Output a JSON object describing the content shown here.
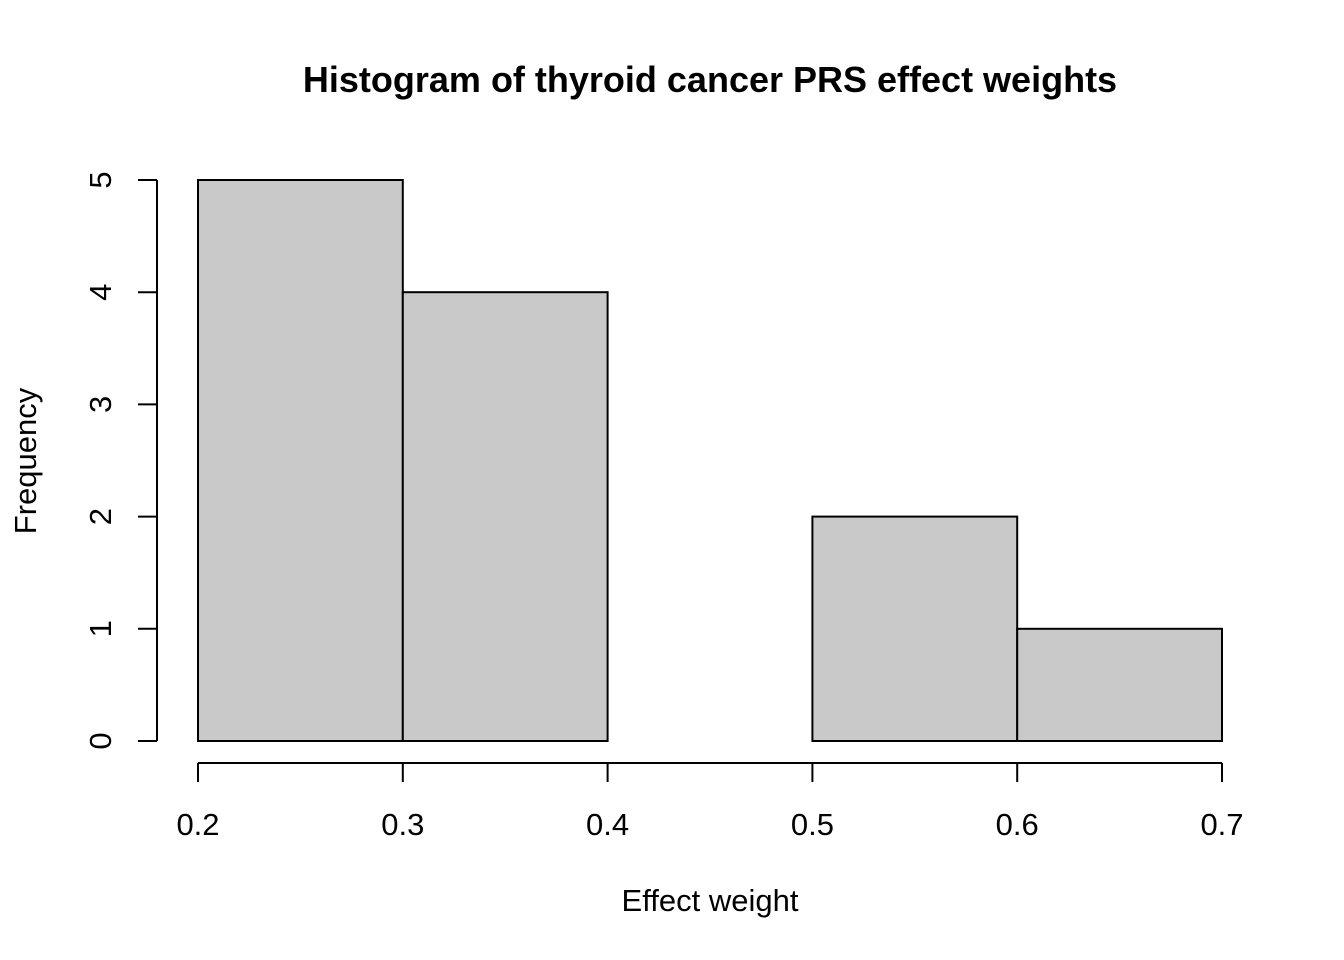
{
  "chart_data": {
    "type": "bar",
    "title": "Histogram of thyroid cancer PRS effect weights",
    "xlabel": "Effect weight",
    "ylabel": "Frequency",
    "bins": [
      {
        "start": 0.2,
        "end": 0.3,
        "count": 5
      },
      {
        "start": 0.3,
        "end": 0.4,
        "count": 4
      },
      {
        "start": 0.4,
        "end": 0.5,
        "count": 0
      },
      {
        "start": 0.5,
        "end": 0.6,
        "count": 2
      },
      {
        "start": 0.6,
        "end": 0.7,
        "count": 1
      }
    ],
    "xlim": [
      0.2,
      0.7
    ],
    "ylim": [
      0,
      5
    ],
    "x_ticks": [
      "0.2",
      "0.3",
      "0.4",
      "0.5",
      "0.6",
      "0.7"
    ],
    "y_ticks": [
      "0",
      "1",
      "2",
      "3",
      "4",
      "5"
    ],
    "bar_color": "#c9c9c9",
    "grid": false
  }
}
